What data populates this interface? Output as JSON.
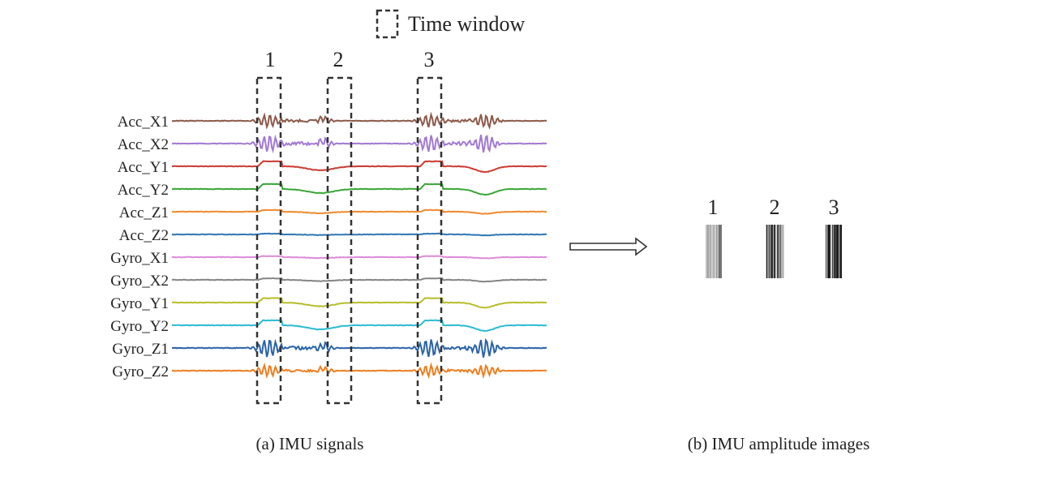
{
  "legend": {
    "label": "Time window"
  },
  "windows": [
    {
      "label": "1"
    },
    {
      "label": "2"
    },
    {
      "label": "3"
    }
  ],
  "signals": [
    {
      "name": "Acc_X1",
      "color": "#8c5a4a",
      "shape": "osc",
      "amp": 1.0
    },
    {
      "name": "Acc_X2",
      "color": "#a178d4",
      "shape": "osc",
      "amp": 1.3
    },
    {
      "name": "Acc_Y1",
      "color": "#cc3b32",
      "shape": "step",
      "amp": 1.0
    },
    {
      "name": "Acc_Y2",
      "color": "#3aa637",
      "shape": "step",
      "amp": 1.0
    },
    {
      "name": "Acc_Z1",
      "color": "#ef8a2c",
      "shape": "step",
      "amp": 0.35
    },
    {
      "name": "Acc_Z2",
      "color": "#2f77b4",
      "shape": "step",
      "amp": 0.15
    },
    {
      "name": "Gyro_X1",
      "color": "#dd8ad8",
      "shape": "step",
      "amp": 0.2
    },
    {
      "name": "Gyro_X2",
      "color": "#858585",
      "shape": "step",
      "amp": 0.3
    },
    {
      "name": "Gyro_Y1",
      "color": "#b7bd2a",
      "shape": "step",
      "amp": 0.9
    },
    {
      "name": "Gyro_Y2",
      "color": "#2bbbd2",
      "shape": "step",
      "amp": 1.0
    },
    {
      "name": "Gyro_Z1",
      "color": "#2a63a8",
      "shape": "osc",
      "amp": 1.4
    },
    {
      "name": "Gyro_Z2",
      "color": "#ef7d1e",
      "shape": "osc",
      "amp": 0.9
    }
  ],
  "images": [
    {
      "label": "1",
      "tone": "light"
    },
    {
      "label": "2",
      "tone": "dark"
    },
    {
      "label": "3",
      "tone": "dark"
    }
  ],
  "captions": {
    "left": "(a) IMU signals",
    "right": "(b) IMU amplitude images"
  }
}
